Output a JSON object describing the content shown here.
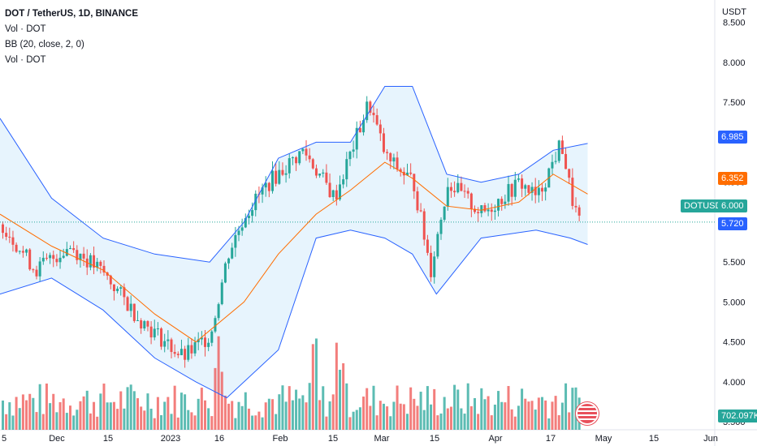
{
  "legend": {
    "title": "DOT / TetherUS, 1D, BINANCE",
    "rows": [
      "Vol · DOT",
      "BB (20, close, 2, 0)",
      "Vol · DOT"
    ]
  },
  "price_axis": {
    "currency": "USDT",
    "ticks": [
      "8.500",
      "8.000",
      "7.500",
      "6.500",
      "5.500",
      "5.000",
      "4.500",
      "4.000",
      "3.500"
    ]
  },
  "tags": {
    "upper_band": "6.985",
    "basis": "6.352",
    "symbol": "DOTUSDT",
    "last_price": "6.000",
    "lower_band": "5.720",
    "volume": "702.097K"
  },
  "time_axis": [
    "5",
    "Dec",
    "15",
    "2023",
    "16",
    "Feb",
    "15",
    "Mar",
    "15",
    "Apr",
    "17",
    "May",
    "15",
    "Jun"
  ],
  "colors": {
    "up": "#26a69a",
    "down": "#ef5350",
    "band": "#2962ff",
    "basis": "#ff6d00",
    "band_fill": "#e3f2fd",
    "last_price": "#26a69a"
  },
  "chart_data": {
    "type": "candlestick",
    "y_range": [
      3.4,
      8.7
    ],
    "price_points": [
      [
        "2022-11-05",
        6.0
      ],
      [
        "2022-11-15",
        5.4
      ],
      [
        "2022-11-25",
        5.7
      ],
      [
        "2022-12-05",
        5.35
      ],
      [
        "2022-12-15",
        4.8
      ],
      [
        "2022-12-28",
        4.3
      ],
      [
        "2023-01-05",
        4.6
      ],
      [
        "2023-01-10",
        5.6
      ],
      [
        "2023-01-15",
        6.1
      ],
      [
        "2023-01-22",
        6.5
      ],
      [
        "2023-02-01",
        6.9
      ],
      [
        "2023-02-10",
        6.3
      ],
      [
        "2023-02-20",
        7.5
      ],
      [
        "2023-02-25",
        6.8
      ],
      [
        "2023-03-05",
        6.5
      ],
      [
        "2023-03-10",
        5.4
      ],
      [
        "2023-03-15",
        6.5
      ],
      [
        "2023-03-25",
        6.1
      ],
      [
        "2023-04-05",
        6.5
      ],
      [
        "2023-04-10",
        6.3
      ],
      [
        "2023-04-17",
        7.0
      ],
      [
        "2023-04-20",
        6.3
      ],
      [
        "2023-04-23",
        5.9
      ],
      [
        "2023-04-25",
        6.0
      ]
    ],
    "bollinger_upper": [
      [
        "2022-11-05",
        7.3
      ],
      [
        "2022-11-20",
        6.3
      ],
      [
        "2022-12-05",
        5.8
      ],
      [
        "2022-12-20",
        5.6
      ],
      [
        "2023-01-05",
        5.5
      ],
      [
        "2023-01-15",
        6.0
      ],
      [
        "2023-01-25",
        6.8
      ],
      [
        "2023-02-05",
        7.0
      ],
      [
        "2023-02-15",
        7.0
      ],
      [
        "2023-02-25",
        7.7
      ],
      [
        "2023-03-05",
        7.7
      ],
      [
        "2023-03-15",
        6.6
      ],
      [
        "2023-03-25",
        6.5
      ],
      [
        "2023-04-05",
        6.6
      ],
      [
        "2023-04-15",
        6.9
      ],
      [
        "2023-04-25",
        6.985
      ]
    ],
    "bollinger_basis": [
      [
        "2022-11-05",
        6.1
      ],
      [
        "2022-11-20",
        5.7
      ],
      [
        "2022-12-05",
        5.4
      ],
      [
        "2022-12-20",
        4.85
      ],
      [
        "2023-01-01",
        4.5
      ],
      [
        "2023-01-15",
        5.0
      ],
      [
        "2023-01-25",
        5.6
      ],
      [
        "2023-02-05",
        6.1
      ],
      [
        "2023-02-15",
        6.4
      ],
      [
        "2023-02-25",
        6.75
      ],
      [
        "2023-03-05",
        6.55
      ],
      [
        "2023-03-15",
        6.2
      ],
      [
        "2023-03-25",
        6.15
      ],
      [
        "2023-04-05",
        6.25
      ],
      [
        "2023-04-15",
        6.6
      ],
      [
        "2023-04-25",
        6.352
      ]
    ],
    "bollinger_lower": [
      [
        "2022-11-05",
        5.1
      ],
      [
        "2022-11-20",
        5.3
      ],
      [
        "2022-12-05",
        4.9
      ],
      [
        "2022-12-20",
        4.3
      ],
      [
        "2023-01-01",
        4.0
      ],
      [
        "2023-01-10",
        3.8
      ],
      [
        "2023-01-25",
        4.4
      ],
      [
        "2023-02-05",
        5.8
      ],
      [
        "2023-02-15",
        5.9
      ],
      [
        "2023-02-25",
        5.8
      ],
      [
        "2023-03-05",
        5.6
      ],
      [
        "2023-03-12",
        5.1
      ],
      [
        "2023-03-25",
        5.8
      ],
      [
        "2023-04-10",
        5.9
      ],
      [
        "2023-04-20",
        5.8
      ],
      [
        "2023-04-25",
        5.72
      ]
    ],
    "last_price": 6.0
  }
}
